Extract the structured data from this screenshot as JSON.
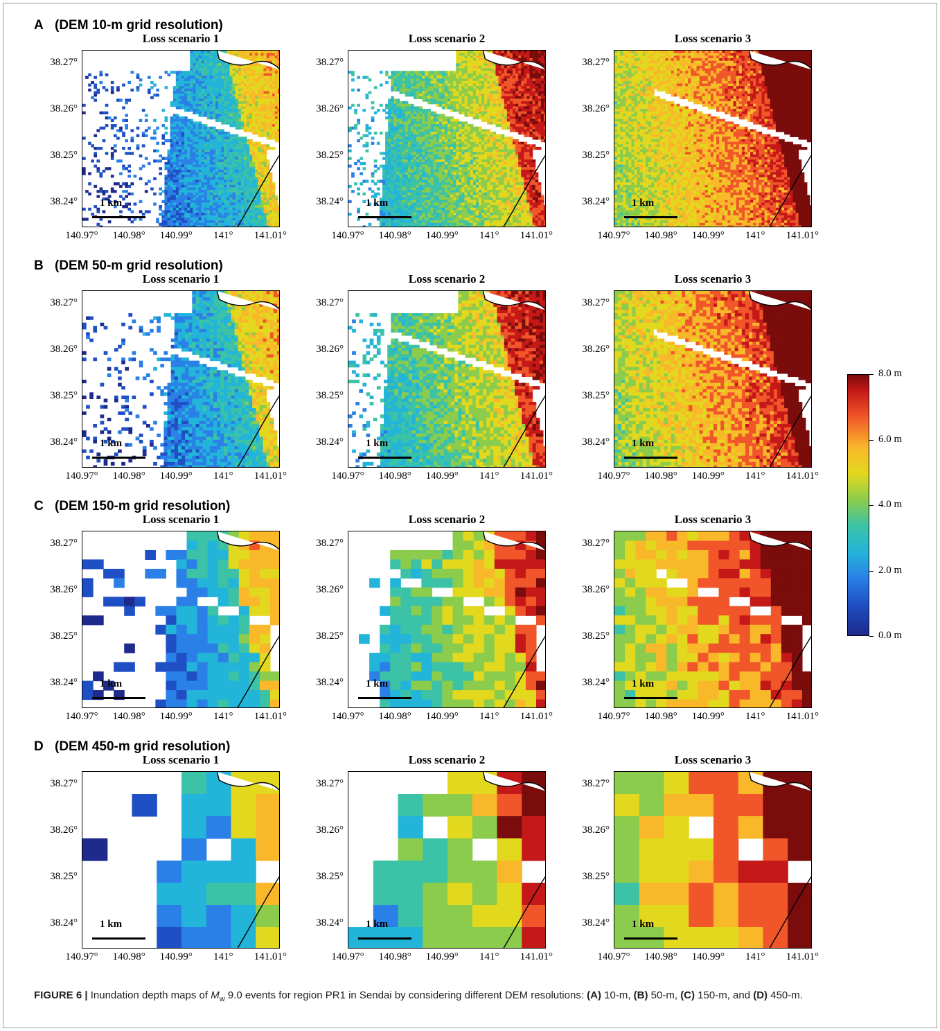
{
  "figure": {
    "rows": [
      {
        "letter": "A",
        "title": "(DEM 10-m grid resolution)",
        "grid": 70
      },
      {
        "letter": "B",
        "title": "(DEM 50-m grid resolution)",
        "grid": 56
      },
      {
        "letter": "C",
        "title": "(DEM 150-m grid resolution)",
        "grid": 19
      },
      {
        "letter": "D",
        "title": "(DEM 450-m grid resolution)",
        "grid": 8
      }
    ],
    "panel_titles": [
      "Loss scenario 1",
      "Loss scenario 2",
      "Loss scenario 3"
    ],
    "y_ticks": [
      "38.27°",
      "38.26°",
      "38.25°",
      "38.24°"
    ],
    "x_ticks": [
      "140.97°",
      "140.98°",
      "140.99°",
      "141°",
      "141.01°"
    ],
    "scale_bar": "1 km",
    "colorbar": {
      "labels": [
        "8.0 m",
        "6.0 m",
        "4.0 m",
        "2.0 m",
        "0.0 m"
      ],
      "colors": [
        "#1e2a8c",
        "#1f4fc4",
        "#2a80e6",
        "#23b4d9",
        "#3cc2a6",
        "#8ccc4c",
        "#e2d81e",
        "#f9b82a",
        "#f0562a",
        "#c51818",
        "#7a0c0c"
      ]
    }
  },
  "caption": {
    "label": "FIGURE 6 |",
    "text_1": " Inundation depth maps of ",
    "mw_m": "M",
    "mw_sub": "w",
    "text_2": " 9.0 events for region PR1 in Sendai by considering different DEM resolutions: ",
    "a": "(A)",
    "a_text": " 10-m, ",
    "b": "(B)",
    "b_text": " 50-m, ",
    "c": "(C)",
    "c_text": " 150-m, and ",
    "d": "(D)",
    "d_text": " 450-m."
  }
}
